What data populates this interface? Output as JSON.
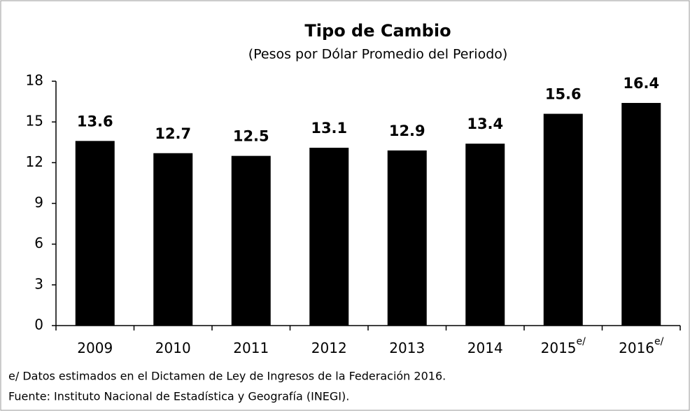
{
  "chart_data": {
    "type": "bar",
    "title": "Tipo de Cambio",
    "subtitle": "(Pesos por Dólar Promedio del Periodo)",
    "categories": [
      "2009",
      "2010",
      "2011",
      "2012",
      "2013",
      "2014",
      "2015",
      "2016"
    ],
    "estimated": [
      false,
      false,
      false,
      false,
      false,
      false,
      true,
      true
    ],
    "estimate_marker": "e/",
    "values": [
      13.6,
      12.7,
      12.5,
      13.1,
      12.9,
      13.4,
      15.6,
      16.4
    ],
    "color": "#000000",
    "ylim": [
      0,
      18
    ],
    "yticks": [
      0,
      3,
      6,
      9,
      12,
      15,
      18
    ],
    "grid": false,
    "footnotes": [
      "e/ Datos estimados en el Dictamen de Ley de Ingresos de la Federación 2016.",
      "Fuente: Instituto Nacional de Estadística y Geografía (INEGI)."
    ]
  }
}
